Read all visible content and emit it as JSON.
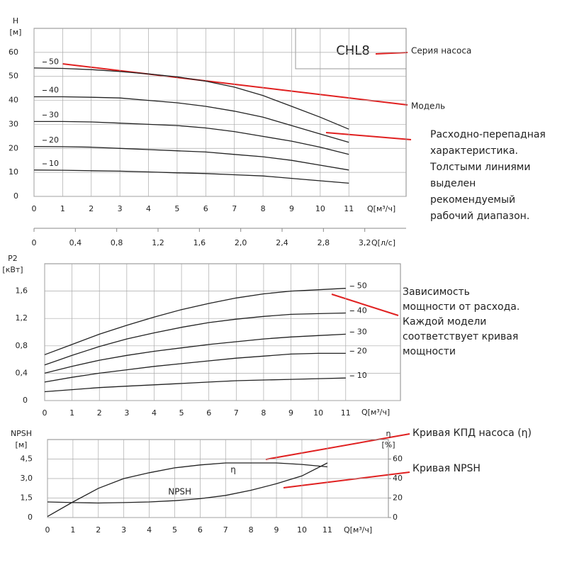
{
  "chart_data": [
    {
      "type": "line",
      "ylabel": "H",
      "yunit": "[м]",
      "xlabel": "Q[м³/ч]",
      "model": "CHL8",
      "x": [
        0,
        1,
        2,
        3,
        4,
        5,
        6,
        7,
        8,
        9,
        10,
        11
      ],
      "xlim": [
        0,
        13
      ],
      "xticks": [
        0,
        1,
        2,
        3,
        4,
        5,
        6,
        7,
        8,
        9,
        10,
        11
      ],
      "ylim": [
        0,
        70
      ],
      "yticks": [
        0,
        10,
        20,
        30,
        40,
        50,
        60
      ],
      "x2label": "Q[л/с]",
      "x2lim": [
        0,
        3.6
      ],
      "x2ticks": [
        0,
        {
          "value": 0.4,
          "label": "0,4"
        },
        {
          "value": 0.8,
          "label": "0,8"
        },
        {
          "value": 1.2,
          "label": "1,2"
        },
        {
          "value": 1.6,
          "label": "1,6"
        },
        {
          "value": 2.0,
          "label": "2,0"
        },
        {
          "value": 2.4,
          "label": "2,4"
        },
        {
          "value": 2.8,
          "label": "2,8"
        },
        {
          "value": 3.2,
          "label": "3,2"
        }
      ],
      "grid": true,
      "series": [
        {
          "name": "50",
          "color": "#222222",
          "values": [
            53.5,
            53.3,
            52.8,
            52,
            51,
            49.8,
            48,
            45.5,
            42,
            37.5,
            33,
            28
          ]
        },
        {
          "name": "40",
          "color": "#222222",
          "values": [
            41.5,
            41.5,
            41.3,
            41,
            40,
            39,
            37.5,
            35.5,
            33,
            29.5,
            26,
            22.5
          ]
        },
        {
          "name": "30",
          "color": "#222222",
          "values": [
            31.2,
            31.2,
            31,
            30.5,
            30,
            29.5,
            28.5,
            27,
            25,
            23,
            20.5,
            17.5
          ]
        },
        {
          "name": "20",
          "color": "#222222",
          "values": [
            20.8,
            20.7,
            20.5,
            20,
            19.5,
            19,
            18.5,
            17.5,
            16.5,
            15,
            13,
            11
          ]
        },
        {
          "name": "10",
          "color": "#222222",
          "values": [
            11,
            10.9,
            10.7,
            10.5,
            10.2,
            9.8,
            9.5,
            9,
            8.5,
            7.5,
            6.5,
            5.5
          ]
        }
      ],
      "annotations": [
        [
          "Серия насоса"
        ],
        [
          "Модель"
        ],
        [
          "Расходно-перепадная",
          "характеристика.",
          "Толстыми линиями",
          "выделен",
          "рекомендуемый",
          "рабочий диапазон."
        ]
      ]
    },
    {
      "type": "line",
      "ylabel": "P2",
      "yunit": "[кВт]",
      "xlabel": "Q[м³/ч]",
      "x": [
        0,
        1,
        2,
        3,
        4,
        5,
        6,
        7,
        8,
        9,
        10,
        11
      ],
      "xlim": [
        0,
        13
      ],
      "xticks": [
        0,
        1,
        2,
        3,
        4,
        5,
        6,
        7,
        8,
        9,
        10,
        11
      ],
      "ylim": [
        0,
        2.0
      ],
      "yticks": [
        0,
        {
          "value": 0.4,
          "label": "0,4"
        },
        {
          "value": 0.8,
          "label": "0,8"
        },
        {
          "value": 1.2,
          "label": "1,2"
        },
        {
          "value": 1.6,
          "label": "1,6"
        }
      ],
      "grid": true,
      "series": [
        {
          "name": "50",
          "color": "#222222",
          "values": [
            0.67,
            0.82,
            0.97,
            1.1,
            1.22,
            1.33,
            1.42,
            1.5,
            1.56,
            1.6,
            1.62,
            1.64
          ]
        },
        {
          "name": "40",
          "color": "#222222",
          "values": [
            0.52,
            0.66,
            0.79,
            0.9,
            0.99,
            1.07,
            1.14,
            1.19,
            1.23,
            1.26,
            1.27,
            1.28
          ]
        },
        {
          "name": "30",
          "color": "#222222",
          "values": [
            0.4,
            0.5,
            0.59,
            0.66,
            0.72,
            0.77,
            0.82,
            0.86,
            0.9,
            0.93,
            0.95,
            0.97
          ]
        },
        {
          "name": "20",
          "color": "#222222",
          "values": [
            0.27,
            0.34,
            0.4,
            0.45,
            0.5,
            0.54,
            0.58,
            0.62,
            0.65,
            0.68,
            0.69,
            0.69
          ]
        },
        {
          "name": "10",
          "color": "#222222",
          "values": [
            0.13,
            0.16,
            0.19,
            0.21,
            0.23,
            0.25,
            0.27,
            0.29,
            0.3,
            0.31,
            0.32,
            0.33
          ]
        }
      ],
      "annotations": [
        [
          "Зависимость",
          "мощности от расхода.",
          "Каждой модели",
          "соответствует кривая",
          "мощности"
        ]
      ]
    },
    {
      "type": "line",
      "ylabel": "NPSH",
      "yunit": "[м]",
      "y2label": "η",
      "y2unit": "[%]",
      "xlabel": "Q[м³/ч]",
      "x": [
        0,
        1,
        2,
        3,
        4,
        5,
        6,
        7,
        8,
        9,
        10,
        11
      ],
      "xlim": [
        0,
        13.4
      ],
      "xticks": [
        0,
        1,
        2,
        3,
        4,
        5,
        6,
        7,
        8,
        9,
        10,
        11
      ],
      "ylim": [
        0,
        6
      ],
      "yticks": [
        0,
        {
          "value": 1.5,
          "label": "1,5"
        },
        {
          "value": 3.0,
          "label": "3,0"
        },
        {
          "value": 4.5,
          "label": "4,5"
        }
      ],
      "y2lim": [
        0,
        80
      ],
      "y2ticks": [
        0,
        20,
        40,
        60
      ],
      "grid": true,
      "series": [
        {
          "name": "η",
          "color": "#222222",
          "axis": "y2",
          "values": [
            1,
            16,
            30,
            40,
            46,
            51,
            54,
            56,
            56,
            56,
            54.5,
            52
          ]
        },
        {
          "name": "NPSH",
          "color": "#222222",
          "values": [
            1.2,
            1.15,
            1.12,
            1.15,
            1.2,
            1.3,
            1.45,
            1.7,
            2.1,
            2.6,
            3.2,
            4.2
          ]
        }
      ],
      "annotations": [
        [
          "Кривая КПД насоса (η)"
        ],
        [
          "Кривая NPSH"
        ]
      ]
    }
  ]
}
